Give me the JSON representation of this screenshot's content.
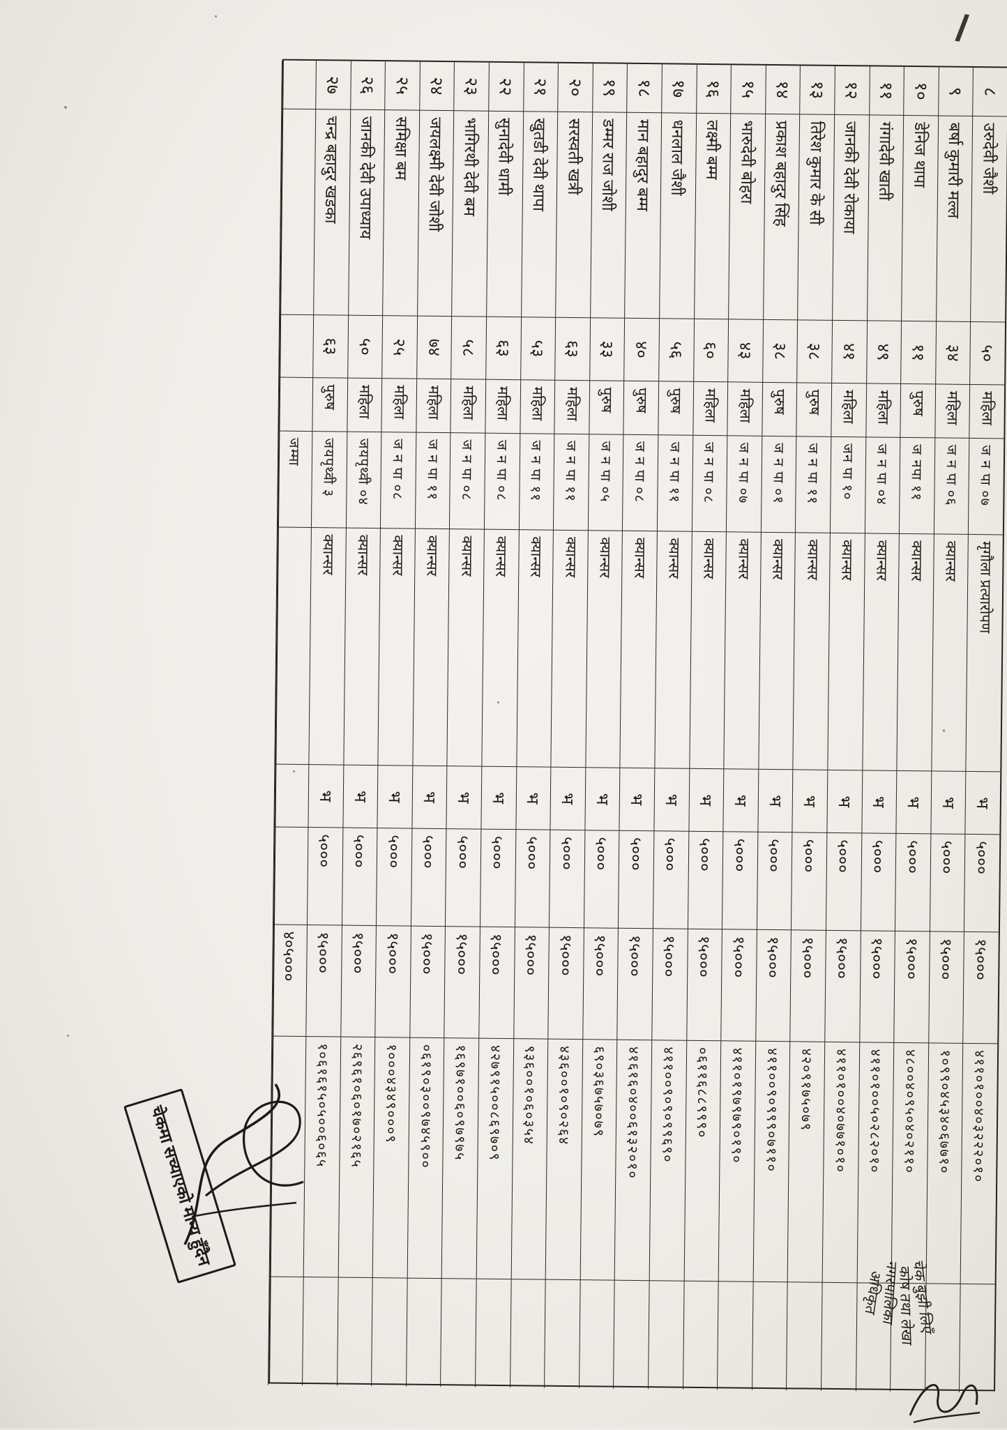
{
  "document": {
    "kind": "scanned beneficiary payment list (rotated 90°)",
    "language": "Nepali (Devanagari)",
    "ink_color": "#23201b",
    "paper_color": "#efede8"
  },
  "table": {
    "column_keys": [
      "sn",
      "name",
      "age",
      "gender",
      "address",
      "disease",
      "mark",
      "first_amount",
      "second_amount",
      "id_number",
      "blank"
    ],
    "rows": [
      {
        "sn": "८",
        "name": "उरुदेवी जैशी",
        "age": "५०",
        "gender": "महिला",
        "address": "ज न पा ०७",
        "disease": "मृगौला प्रत्यारोपण",
        "mark": "भ",
        "first_amount": "५०००",
        "second_amount": "१५०००",
        "id_number": "४११०१००४०३२२२०१०",
        "blank": ""
      },
      {
        "sn": "९",
        "name": "बर्षा कुमारी मल्ल",
        "age": "३४",
        "gender": "महिला",
        "address": "ज न पा ०६",
        "disease": "क्यान्सर",
        "mark": "भ",
        "first_amount": "५०००",
        "second_amount": "१५०००",
        "id_number": "१०९९०४५३४०६७७१०",
        "blank": ""
      },
      {
        "sn": "१०",
        "name": "डेनिज थापा",
        "age": "११",
        "gender": "पुरुष",
        "address": "ज नपा ११",
        "disease": "क्यान्सर",
        "mark": "भ",
        "first_amount": "५०००",
        "second_amount": "१५०००",
        "id_number": "४८००४०९५०४०२११०",
        "blank": ""
      },
      {
        "sn": "११",
        "name": "गंगादेवी खाती",
        "age": "४९",
        "gender": "महिला",
        "address": "ज न पा ०४",
        "disease": "क्यान्सर",
        "mark": "भ",
        "first_amount": "५०००",
        "second_amount": "१५०००",
        "id_number": "४११०१००५०२८२०१०",
        "blank": ""
      },
      {
        "sn": "१२",
        "name": "जानकी देवी रोकाया",
        "age": "४१",
        "gender": "महिला",
        "address": "जन पा १०",
        "disease": "क्यान्सर",
        "mark": "भ",
        "first_amount": "५०००",
        "second_amount": "१५०००",
        "id_number": "४११०१००४०७७१०१०",
        "blank": ""
      },
      {
        "sn": "१३",
        "name": "तिरेश कुमार के सी",
        "age": "३८",
        "gender": "पुरुष",
        "address": "ज न पा ११",
        "disease": "क्यान्सर",
        "mark": "भ",
        "first_amount": "५०००",
        "second_amount": "१५०००",
        "id_number": "४२०९१७५०७९",
        "blank": ""
      },
      {
        "sn": "१४",
        "name": "प्रकाश बहादुर सिंह",
        "age": "३८",
        "gender": "पुरुष",
        "address": "ज न पा ०१",
        "disease": "क्यान्सर",
        "mark": "भ",
        "first_amount": "५०००",
        "second_amount": "१५०००",
        "id_number": "४११००९०९९९०७११०",
        "blank": ""
      },
      {
        "sn": "१५",
        "name": "भारुदेवी बोहरा",
        "age": "४३",
        "gender": "महिला",
        "address": "ज न पा ०७",
        "disease": "क्यान्सर",
        "mark": "भ",
        "first_amount": "५०००",
        "second_amount": "१५०००",
        "id_number": "४११०१९७९७९०१९०",
        "blank": ""
      },
      {
        "sn": "१६",
        "name": "लक्ष्मी बम्म",
        "age": "६०",
        "gender": "महिला",
        "address": "ज न पा ०८",
        "disease": "क्यान्सर",
        "mark": "भ",
        "first_amount": "५०००",
        "second_amount": "१५०००",
        "id_number": "०६११६८८९९९०",
        "blank": ""
      },
      {
        "sn": "१७",
        "name": "धनलाल जैशी",
        "age": "५६",
        "gender": "पुरुष",
        "address": "ज न पा ११",
        "disease": "क्यान्सर",
        "mark": "भ",
        "first_amount": "५०००",
        "second_amount": "१५०००",
        "id_number": "४११००९०९०९९६९०",
        "blank": ""
      },
      {
        "sn": "१८",
        "name": "मान बहादुर बम्म",
        "age": "४०",
        "gender": "पुरुष",
        "address": "ज न पा ०८",
        "disease": "क्यान्सर",
        "mark": "भ",
        "first_amount": "५०००",
        "second_amount": "१५०००",
        "id_number": "४१६१६०४००६१३२०१०",
        "blank": ""
      },
      {
        "sn": "१९",
        "name": "डम्मर राज जोशी",
        "age": "३३",
        "gender": "पुरुष",
        "address": "ज न पा ०५",
        "disease": "क्यान्सर",
        "mark": "भ",
        "first_amount": "५०००",
        "second_amount": "१५०००",
        "id_number": "६९०३६७५७०७९",
        "blank": ""
      },
      {
        "sn": "२०",
        "name": "सरस्वती खत्री",
        "age": "६३",
        "gender": "महिला",
        "address": "ज न पा ११",
        "disease": "क्यान्सर",
        "mark": "भ",
        "first_amount": "५०००",
        "second_amount": "१५०००",
        "id_number": "४३६००१०९०२६४",
        "blank": ""
      },
      {
        "sn": "२१",
        "name": "खुतडी देवी थापा",
        "age": "५३",
        "gender": "महिला",
        "address": "ज न पा ११",
        "disease": "क्यान्सर",
        "mark": "भ",
        "first_amount": "५०००",
        "second_amount": "१५०००",
        "id_number": "९३६००१०६०३५४",
        "blank": ""
      },
      {
        "sn": "२२",
        "name": "सुनादेवी धामी",
        "age": "६३",
        "gender": "महिला",
        "address": "ज न पा ०८",
        "disease": "क्यान्सर",
        "mark": "भ",
        "first_amount": "५०००",
        "second_amount": "१५०००",
        "id_number": "४२७९१५००८६९७०९",
        "blank": ""
      },
      {
        "sn": "२३",
        "name": "भागिरथी देवी बम",
        "age": "५८",
        "gender": "महिला",
        "address": "ज न पा ०८",
        "disease": "क्यान्सर",
        "mark": "भ",
        "first_amount": "५०००",
        "second_amount": "१५०००",
        "id_number": "१६९७१००६०९७९७५",
        "blank": ""
      },
      {
        "sn": "२४",
        "name": "जयलक्ष्मी देवी जोशी",
        "age": "७४",
        "gender": "महिला",
        "address": "ज न पा ११",
        "disease": "क्यान्सर",
        "mark": "भ",
        "first_amount": "५०००",
        "second_amount": "१५०००",
        "id_number": "०६१९०३००९७४५९००",
        "blank": ""
      },
      {
        "sn": "२५",
        "name": "समिक्षा बम",
        "age": "२५",
        "gender": "महिला",
        "address": "ज न पा ०८",
        "disease": "क्यान्सर",
        "mark": "भ",
        "first_amount": "५०००",
        "second_amount": "१५०००",
        "id_number": "१०००४३४९०००९",
        "blank": ""
      },
      {
        "sn": "२६",
        "name": "जानकी देवी उपाध्याय",
        "age": "५०",
        "gender": "महिला",
        "address": "जयपृथ्वी ०४",
        "disease": "क्यान्सर",
        "mark": "भ",
        "first_amount": "५०००",
        "second_amount": "१५०००",
        "id_number": "२६९६१०६०१७०२१६५",
        "blank": ""
      },
      {
        "sn": "२७",
        "name": "चन्द्र बहादुर खडका",
        "age": "६३",
        "gender": "पुरुष",
        "address": "जयपृथ्वी ३",
        "disease": "क्यान्सर",
        "mark": "भ",
        "first_amount": "५०००",
        "second_amount": "१५०००",
        "id_number": "१०६१६१५०५००६०६५",
        "blank": ""
      }
    ],
    "total_row": {
      "label": "जम्मा",
      "second_amount_total": "४०५०००"
    }
  },
  "stamp": {
    "text": "चेकमा सच्याएको मान्य हुँदैन"
  },
  "handwriting": {
    "lines": [
      "चेक बुझी लिएँ",
      "कोष तथा लेखा",
      "नगरपालिका",
      "अधिकृत"
    ]
  },
  "marks": {
    "corner_mark": "/"
  }
}
